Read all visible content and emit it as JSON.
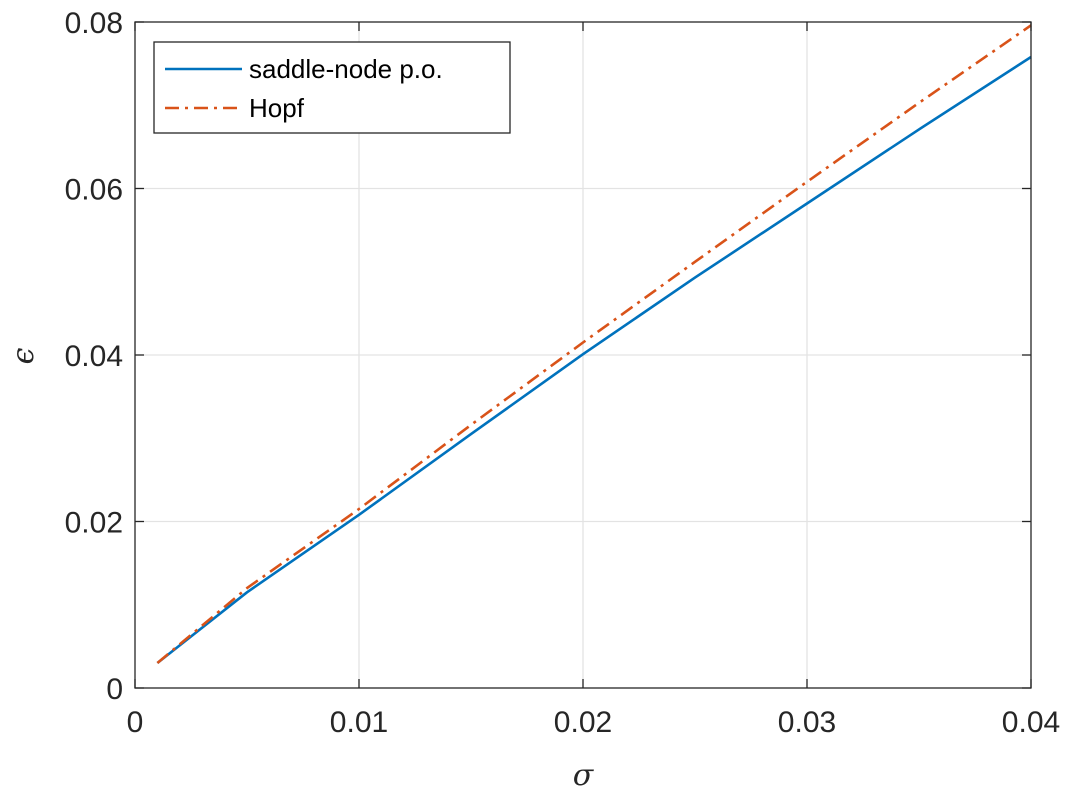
{
  "chart_data": {
    "type": "line",
    "xlabel": "σ",
    "ylabel": "ϵ",
    "xlim": [
      0,
      0.04
    ],
    "ylim": [
      0,
      0.08
    ],
    "x_ticks": [
      0,
      0.01,
      0.02,
      0.03,
      0.04
    ],
    "x_tick_labels": [
      "0",
      "0.01",
      "0.02",
      "0.03",
      "0.04"
    ],
    "y_ticks": [
      0,
      0.02,
      0.04,
      0.06,
      0.08
    ],
    "y_tick_labels": [
      "0",
      "0.02",
      "0.04",
      "0.06",
      "0.08"
    ],
    "grid": true,
    "legend_position": "top-left",
    "series": [
      {
        "name": "saddle-node p.o.",
        "color": "#0072BD",
        "line_style": "solid",
        "x": [
          0.001,
          0.005,
          0.01,
          0.015,
          0.02,
          0.025,
          0.03,
          0.035,
          0.04
        ],
        "y": [
          0.003,
          0.0115,
          0.0208,
          0.0305,
          0.0401,
          0.0493,
          0.0582,
          0.0671,
          0.0758
        ]
      },
      {
        "name": "Hopf",
        "color": "#D95319",
        "line_style": "dashdot",
        "x": [
          0.001,
          0.005,
          0.01,
          0.015,
          0.02,
          0.025,
          0.03,
          0.035,
          0.04
        ],
        "y": [
          0.003,
          0.012,
          0.0215,
          0.0316,
          0.0415,
          0.0512,
          0.0608,
          0.0703,
          0.0796
        ]
      }
    ]
  }
}
